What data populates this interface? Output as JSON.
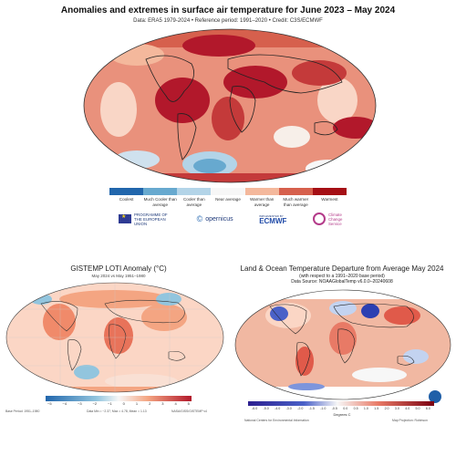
{
  "top": {
    "title": "Anomalies and extremes in surface air temperature for June 2023 – May 2024",
    "subtitle": "Data: ERA5 1979-2024 • Reference period: 1991–2020 • Credit: C3S/ECMWF",
    "legend": [
      {
        "label": "Coolest",
        "color": "#2166ac"
      },
      {
        "label": "Much Cooler than average",
        "color": "#67a9cf"
      },
      {
        "label": "Cooler than average",
        "color": "#b3d4e8"
      },
      {
        "label": "Near average",
        "color": "#f7f7f7"
      },
      {
        "label": "Warmer than average",
        "color": "#f4b89c"
      },
      {
        "label": "Much warmer than average",
        "color": "#d6604d"
      },
      {
        "label": "Warmest",
        "color": "#a50f15"
      }
    ],
    "logos": {
      "eu": "PROGRAMME OF THE EUROPEAN UNION",
      "copernicus": "opernicus",
      "ecmwf_small": "IMPLEMENTED BY",
      "ecmwf": "ECMWF",
      "c3s": "Climate Change Service"
    }
  },
  "bottom_left": {
    "title": "GISTEMP LOTI Anomaly (°C)",
    "subtitle": "May 2024 vs May 1951–1980",
    "ticks": [
      "−5",
      "−4",
      "−3",
      "−2",
      "−1",
      "0",
      "1",
      "2",
      "3",
      "4",
      "5"
    ],
    "foot_left": "Base Period: 1951–1980",
    "foot_mid": "Data Min = −2.37, Max = 4.78, Mean = 1.13",
    "foot_right": "NASA/GISS/GISTEMP v4"
  },
  "bottom_right": {
    "title": "Land & Ocean Temperature Departure from Average May 2024",
    "subtitle_1": "(with respect to a 1991–2020 base period)",
    "subtitle_2": "Data Source: NOAAGlobalTemp v6.0.0–20240608",
    "ticks": [
      "-6.0",
      "-5.0",
      "-4.0",
      "-3.0",
      "-2.0",
      "-1.5",
      "-1.0",
      "-0.5",
      "0.0",
      "0.5",
      "1.0",
      "1.5",
      "2.0",
      "3.0",
      "4.0",
      "5.0",
      "6.0"
    ],
    "unit": "Degrees C",
    "foot_left": "National Centers for Environmental Information",
    "foot_right": "Map Projection: Robinson"
  },
  "colors": {
    "warm_dark": "#b2182b",
    "warm": "#d6604d",
    "warm_light": "#f4b89c",
    "cool": "#67a9cf",
    "cool_dark": "#2166ac"
  }
}
